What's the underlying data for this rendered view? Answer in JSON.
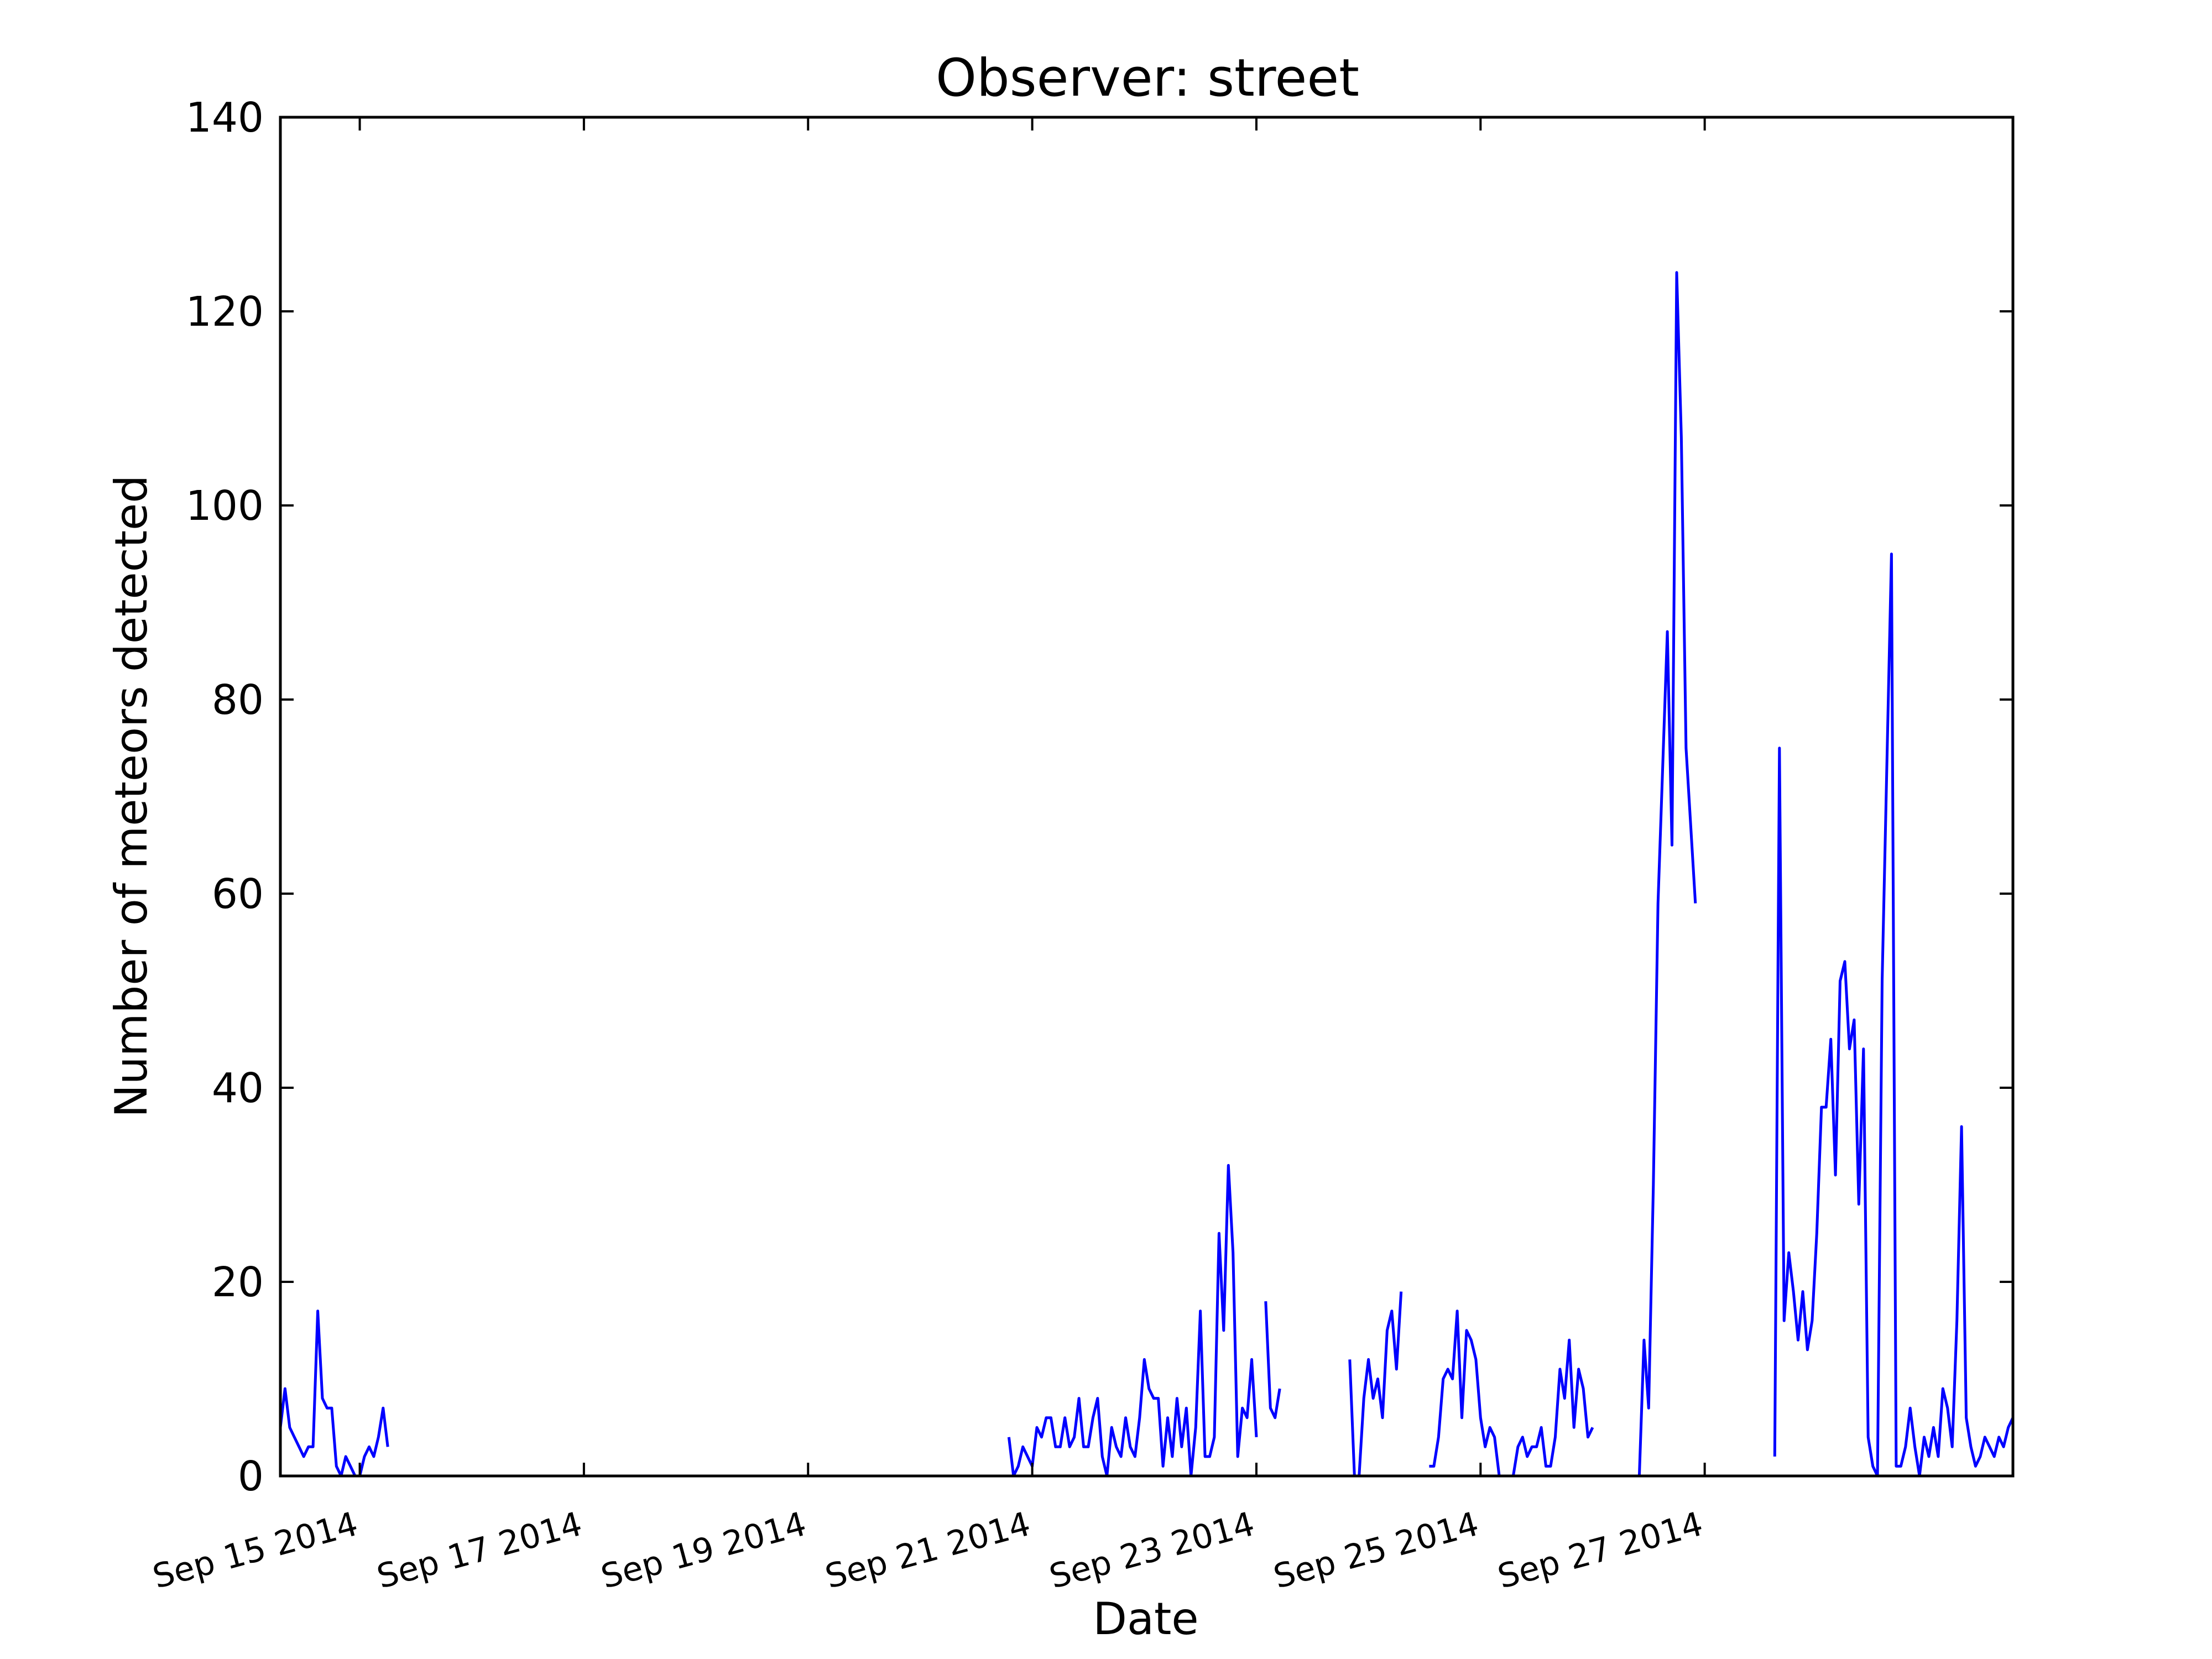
{
  "chart_data": {
    "type": "line",
    "title": "Observer: street",
    "xlabel": "Date",
    "ylabel": "Number of meteors detected",
    "ylim": [
      0,
      140
    ],
    "yticks": [
      0,
      20,
      40,
      60,
      80,
      100,
      120,
      140
    ],
    "xlim": [
      "2014-09-14 07:00",
      "2014-09-29 18:00"
    ],
    "xticks": [
      {
        "date": "2014-09-15",
        "label": "Sep 15 2014"
      },
      {
        "date": "2014-09-17",
        "label": "Sep 17 2014"
      },
      {
        "date": "2014-09-19",
        "label": "Sep 19 2014"
      },
      {
        "date": "2014-09-21",
        "label": "Sep 21 2014"
      },
      {
        "date": "2014-09-23",
        "label": "Sep 23 2014"
      },
      {
        "date": "2014-09-25",
        "label": "Sep 25 2014"
      },
      {
        "date": "2014-09-27",
        "label": "Sep 27 2014"
      }
    ],
    "grid": false,
    "line_color": "#0000ff",
    "series": [
      {
        "segments": [
          [
            [
              "2014-09-14 07:00",
              5
            ],
            [
              "2014-09-14 08:00",
              9
            ],
            [
              "2014-09-14 09:00",
              5
            ],
            [
              "2014-09-14 10:00",
              4
            ],
            [
              "2014-09-14 11:00",
              3
            ],
            [
              "2014-09-14 12:00",
              2
            ],
            [
              "2014-09-14 13:00",
              3
            ],
            [
              "2014-09-14 14:00",
              3
            ],
            [
              "2014-09-14 15:00",
              17
            ],
            [
              "2014-09-14 16:00",
              8
            ],
            [
              "2014-09-14 17:00",
              7
            ],
            [
              "2014-09-14 18:00",
              7
            ],
            [
              "2014-09-14 19:00",
              1
            ],
            [
              "2014-09-14 20:00",
              0
            ],
            [
              "2014-09-14 21:00",
              2
            ],
            [
              "2014-09-14 22:00",
              1
            ],
            [
              "2014-09-14 23:00",
              0
            ],
            [
              "2014-09-15 00:00",
              0
            ],
            [
              "2014-09-15 01:00",
              2
            ],
            [
              "2014-09-15 02:00",
              3
            ],
            [
              "2014-09-15 03:00",
              2
            ],
            [
              "2014-09-15 04:00",
              4
            ],
            [
              "2014-09-15 05:00",
              7
            ],
            [
              "2014-09-15 06:00",
              3
            ]
          ],
          [
            [
              "2014-09-20 19:00",
              4
            ],
            [
              "2014-09-20 20:00",
              0
            ],
            [
              "2014-09-20 21:00",
              1
            ],
            [
              "2014-09-20 22:00",
              3
            ],
            [
              "2014-09-20 23:00",
              2
            ],
            [
              "2014-09-21 00:00",
              1
            ],
            [
              "2014-09-21 01:00",
              5
            ],
            [
              "2014-09-21 02:00",
              4
            ],
            [
              "2014-09-21 03:00",
              6
            ],
            [
              "2014-09-21 04:00",
              6
            ],
            [
              "2014-09-21 05:00",
              3
            ],
            [
              "2014-09-21 06:00",
              3
            ],
            [
              "2014-09-21 07:00",
              6
            ],
            [
              "2014-09-21 08:00",
              3
            ],
            [
              "2014-09-21 09:00",
              4
            ],
            [
              "2014-09-21 10:00",
              8
            ],
            [
              "2014-09-21 11:00",
              3
            ],
            [
              "2014-09-21 12:00",
              3
            ],
            [
              "2014-09-21 13:00",
              6
            ],
            [
              "2014-09-21 14:00",
              8
            ],
            [
              "2014-09-21 15:00",
              2
            ],
            [
              "2014-09-21 16:00",
              0
            ],
            [
              "2014-09-21 17:00",
              5
            ],
            [
              "2014-09-21 18:00",
              3
            ],
            [
              "2014-09-21 19:00",
              2
            ],
            [
              "2014-09-21 20:00",
              6
            ],
            [
              "2014-09-21 21:00",
              3
            ],
            [
              "2014-09-21 22:00",
              2
            ],
            [
              "2014-09-21 23:00",
              6
            ],
            [
              "2014-09-22 00:00",
              12
            ],
            [
              "2014-09-22 01:00",
              9
            ],
            [
              "2014-09-22 02:00",
              8
            ],
            [
              "2014-09-22 03:00",
              8
            ],
            [
              "2014-09-22 04:00",
              1
            ],
            [
              "2014-09-22 05:00",
              6
            ],
            [
              "2014-09-22 06:00",
              2
            ],
            [
              "2014-09-22 07:00",
              8
            ],
            [
              "2014-09-22 08:00",
              3
            ],
            [
              "2014-09-22 09:00",
              7
            ],
            [
              "2014-09-22 10:00",
              0
            ],
            [
              "2014-09-22 11:00",
              5
            ],
            [
              "2014-09-22 12:00",
              17
            ],
            [
              "2014-09-22 13:00",
              2
            ],
            [
              "2014-09-22 14:00",
              2
            ],
            [
              "2014-09-22 15:00",
              4
            ],
            [
              "2014-09-22 16:00",
              25
            ],
            [
              "2014-09-22 17:00",
              15
            ],
            [
              "2014-09-22 18:00",
              32
            ],
            [
              "2014-09-22 19:00",
              23
            ],
            [
              "2014-09-22 20:00",
              2
            ],
            [
              "2014-09-22 21:00",
              7
            ],
            [
              "2014-09-22 22:00",
              6
            ],
            [
              "2014-09-22 23:00",
              12
            ],
            [
              "2014-09-23 00:00",
              4
            ]
          ],
          [
            [
              "2014-09-23 02:00",
              18
            ],
            [
              "2014-09-23 03:00",
              7
            ],
            [
              "2014-09-23 04:00",
              6
            ],
            [
              "2014-09-23 05:00",
              9
            ]
          ],
          [
            [
              "2014-09-23 20:00",
              12
            ],
            [
              "2014-09-23 21:00",
              0
            ],
            [
              "2014-09-23 22:00",
              0
            ],
            [
              "2014-09-23 23:00",
              8
            ],
            [
              "2014-09-24 00:00",
              12
            ],
            [
              "2014-09-24 01:00",
              8
            ],
            [
              "2014-09-24 02:00",
              10
            ],
            [
              "2014-09-24 03:00",
              6
            ],
            [
              "2014-09-24 04:00",
              15
            ],
            [
              "2014-09-24 05:00",
              17
            ],
            [
              "2014-09-24 06:00",
              11
            ],
            [
              "2014-09-24 07:00",
              19
            ]
          ],
          [
            [
              "2014-09-24 13:00",
              1
            ],
            [
              "2014-09-24 14:00",
              1
            ],
            [
              "2014-09-24 15:00",
              4
            ],
            [
              "2014-09-24 16:00",
              10
            ],
            [
              "2014-09-24 17:00",
              11
            ],
            [
              "2014-09-24 18:00",
              10
            ],
            [
              "2014-09-24 19:00",
              17
            ],
            [
              "2014-09-24 20:00",
              6
            ],
            [
              "2014-09-24 21:00",
              15
            ],
            [
              "2014-09-24 22:00",
              14
            ],
            [
              "2014-09-24 23:00",
              12
            ],
            [
              "2014-09-25 00:00",
              6
            ],
            [
              "2014-09-25 01:00",
              3
            ],
            [
              "2014-09-25 02:00",
              5
            ],
            [
              "2014-09-25 03:00",
              4
            ],
            [
              "2014-09-25 04:00",
              0
            ],
            [
              "2014-09-25 05:00",
              0
            ],
            [
              "2014-09-25 06:00",
              0
            ],
            [
              "2014-09-25 07:00",
              0
            ],
            [
              "2014-09-25 08:00",
              3
            ],
            [
              "2014-09-25 09:00",
              4
            ],
            [
              "2014-09-25 10:00",
              2
            ],
            [
              "2014-09-25 11:00",
              3
            ],
            [
              "2014-09-25 12:00",
              3
            ],
            [
              "2014-09-25 13:00",
              5
            ],
            [
              "2014-09-25 14:00",
              1
            ],
            [
              "2014-09-25 15:00",
              1
            ],
            [
              "2014-09-25 16:00",
              4
            ],
            [
              "2014-09-25 17:00",
              11
            ],
            [
              "2014-09-25 18:00",
              8
            ],
            [
              "2014-09-25 19:00",
              14
            ],
            [
              "2014-09-25 20:00",
              5
            ],
            [
              "2014-09-25 21:00",
              11
            ],
            [
              "2014-09-25 22:00",
              9
            ],
            [
              "2014-09-25 23:00",
              4
            ],
            [
              "2014-09-26 00:00",
              5
            ]
          ],
          [
            [
              "2014-09-26 10:00",
              0
            ],
            [
              "2014-09-26 11:00",
              14
            ],
            [
              "2014-09-26 12:00",
              7
            ],
            [
              "2014-09-26 13:00",
              30
            ],
            [
              "2014-09-26 14:00",
              59
            ],
            [
              "2014-09-26 16:00",
              87
            ],
            [
              "2014-09-26 17:00",
              65
            ],
            [
              "2014-09-26 18:00",
              124
            ],
            [
              "2014-09-26 19:00",
              107
            ],
            [
              "2014-09-26 20:00",
              75
            ],
            [
              "2014-09-26 22:00",
              59
            ]
          ],
          [
            [
              "2014-09-27 15:00",
              2
            ],
            [
              "2014-09-27 16:00",
              75
            ],
            [
              "2014-09-27 17:00",
              16
            ],
            [
              "2014-09-27 18:00",
              23
            ],
            [
              "2014-09-27 19:00",
              19
            ],
            [
              "2014-09-27 20:00",
              14
            ],
            [
              "2014-09-27 21:00",
              19
            ],
            [
              "2014-09-27 22:00",
              13
            ],
            [
              "2014-09-27 23:00",
              16
            ],
            [
              "2014-09-28 00:00",
              25
            ],
            [
              "2014-09-28 01:00",
              38
            ],
            [
              "2014-09-28 02:00",
              38
            ],
            [
              "2014-09-28 03:00",
              45
            ],
            [
              "2014-09-28 04:00",
              31
            ],
            [
              "2014-09-28 05:00",
              51
            ],
            [
              "2014-09-28 06:00",
              53
            ],
            [
              "2014-09-28 07:00",
              44
            ],
            [
              "2014-09-28 08:00",
              47
            ],
            [
              "2014-09-28 09:00",
              28
            ],
            [
              "2014-09-28 10:00",
              44
            ],
            [
              "2014-09-28 11:00",
              4
            ],
            [
              "2014-09-28 12:00",
              1
            ],
            [
              "2014-09-28 13:00",
              0
            ],
            [
              "2014-09-28 14:00",
              51
            ],
            [
              "2014-09-28 16:00",
              95
            ],
            [
              "2014-09-28 17:00",
              1
            ],
            [
              "2014-09-28 18:00",
              1
            ],
            [
              "2014-09-28 19:00",
              3
            ],
            [
              "2014-09-28 20:00",
              7
            ],
            [
              "2014-09-28 21:00",
              3
            ],
            [
              "2014-09-28 22:00",
              0
            ],
            [
              "2014-09-28 23:00",
              4
            ],
            [
              "2014-09-29 00:00",
              2
            ],
            [
              "2014-09-29 01:00",
              5
            ],
            [
              "2014-09-29 02:00",
              2
            ],
            [
              "2014-09-29 03:00",
              9
            ],
            [
              "2014-09-29 04:00",
              7
            ],
            [
              "2014-09-29 05:00",
              3
            ],
            [
              "2014-09-29 06:00",
              16
            ],
            [
              "2014-09-29 07:00",
              36
            ],
            [
              "2014-09-29 08:00",
              6
            ],
            [
              "2014-09-29 09:00",
              3
            ],
            [
              "2014-09-29 10:00",
              1
            ],
            [
              "2014-09-29 11:00",
              2
            ],
            [
              "2014-09-29 12:00",
              4
            ],
            [
              "2014-09-29 13:00",
              3
            ],
            [
              "2014-09-29 14:00",
              2
            ],
            [
              "2014-09-29 15:00",
              4
            ],
            [
              "2014-09-29 16:00",
              3
            ],
            [
              "2014-09-29 17:00",
              5
            ],
            [
              "2014-09-29 18:00",
              6
            ]
          ]
        ]
      }
    ]
  }
}
